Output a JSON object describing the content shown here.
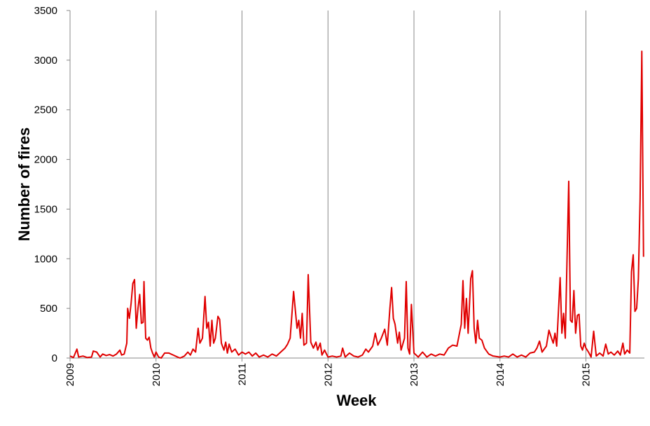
{
  "chart_data": {
    "type": "line",
    "xlabel": "Week",
    "ylabel": "Number of fires",
    "xlim": [
      2009,
      2015.68
    ],
    "xticks": [
      2009,
      2010,
      2011,
      2012,
      2013,
      2014,
      2015
    ],
    "ylim": [
      0,
      3500
    ],
    "yticks": [
      0,
      500,
      1000,
      1500,
      2000,
      2500,
      3000,
      3500
    ],
    "grid": "x",
    "x": [
      2009.0,
      2009.04,
      2009.08,
      2009.1,
      2009.15,
      2009.2,
      2009.25,
      2009.27,
      2009.31,
      2009.35,
      2009.38,
      2009.42,
      2009.46,
      2009.5,
      2009.54,
      2009.58,
      2009.6,
      2009.63,
      2009.66,
      2009.67,
      2009.69,
      2009.71,
      2009.73,
      2009.75,
      2009.77,
      2009.79,
      2009.81,
      2009.83,
      2009.85,
      2009.86,
      2009.88,
      2009.9,
      2009.92,
      2009.94,
      2009.96,
      2009.98,
      2010.0,
      2010.03,
      2010.06,
      2010.1,
      2010.15,
      2010.2,
      2010.25,
      2010.28,
      2010.33,
      2010.37,
      2010.4,
      2010.43,
      2010.46,
      2010.49,
      2010.51,
      2010.54,
      2010.57,
      2010.59,
      2010.61,
      2010.63,
      2010.65,
      2010.67,
      2010.69,
      2010.72,
      2010.74,
      2010.76,
      2010.79,
      2010.81,
      2010.83,
      2010.85,
      2010.88,
      2010.92,
      2010.96,
      2011.0,
      2011.04,
      2011.08,
      2011.12,
      2011.16,
      2011.2,
      2011.25,
      2011.3,
      2011.35,
      2011.4,
      2011.45,
      2011.5,
      2011.53,
      2011.56,
      2011.6,
      2011.64,
      2011.66,
      2011.68,
      2011.7,
      2011.72,
      2011.75,
      2011.77,
      2011.8,
      2011.83,
      2011.86,
      2011.88,
      2011.91,
      2011.93,
      2011.96,
      2012.0,
      2012.05,
      2012.1,
      2012.15,
      2012.17,
      2012.2,
      2012.25,
      2012.3,
      2012.35,
      2012.4,
      2012.44,
      2012.47,
      2012.52,
      2012.55,
      2012.58,
      2012.62,
      2012.66,
      2012.69,
      2012.72,
      2012.74,
      2012.76,
      2012.78,
      2012.81,
      2012.83,
      2012.85,
      2012.89,
      2012.91,
      2012.93,
      2012.95,
      2012.97,
      2013.0,
      2013.05,
      2013.1,
      2013.15,
      2013.2,
      2013.25,
      2013.3,
      2013.35,
      2013.4,
      2013.45,
      2013.5,
      2013.55,
      2013.57,
      2013.59,
      2013.61,
      2013.63,
      2013.66,
      2013.68,
      2013.7,
      2013.72,
      2013.74,
      2013.76,
      2013.79,
      2013.82,
      2013.87,
      2013.92,
      2014.0,
      2014.05,
      2014.1,
      2014.15,
      2014.2,
      2014.25,
      2014.3,
      2014.35,
      2014.4,
      2014.43,
      2014.46,
      2014.49,
      2014.54,
      2014.57,
      2014.6,
      2014.62,
      2014.64,
      2014.66,
      2014.7,
      2014.72,
      2014.74,
      2014.76,
      2014.8,
      2014.82,
      2014.84,
      2014.86,
      2014.88,
      2014.9,
      2014.92,
      2014.94,
      2014.96,
      2014.98,
      2015.0,
      2015.03,
      2015.06,
      2015.09,
      2015.12,
      2015.16,
      2015.2,
      2015.23,
      2015.26,
      2015.29,
      2015.33,
      2015.37,
      2015.4,
      2015.43,
      2015.45,
      2015.48,
      2015.51,
      2015.53,
      2015.55,
      2015.57,
      2015.59,
      2015.61,
      2015.63,
      2015.65,
      2015.67
    ],
    "series": [
      {
        "color": "#e00000",
        "values": [
          20,
          5,
          90,
          10,
          20,
          5,
          10,
          70,
          60,
          10,
          40,
          25,
          35,
          20,
          40,
          80,
          30,
          40,
          150,
          500,
          400,
          550,
          750,
          790,
          300,
          500,
          640,
          350,
          360,
          770,
          200,
          180,
          210,
          100,
          50,
          10,
          60,
          10,
          0,
          50,
          50,
          30,
          10,
          0,
          20,
          60,
          30,
          90,
          60,
          300,
          150,
          200,
          620,
          300,
          360,
          120,
          380,
          150,
          200,
          420,
          390,
          150,
          80,
          160,
          50,
          140,
          60,
          90,
          30,
          60,
          40,
          60,
          20,
          50,
          10,
          30,
          10,
          40,
          20,
          60,
          100,
          140,
          200,
          670,
          300,
          380,
          200,
          450,
          130,
          150,
          840,
          160,
          100,
          160,
          80,
          150,
          30,
          80,
          10,
          20,
          10,
          20,
          100,
          10,
          50,
          20,
          10,
          30,
          90,
          60,
          120,
          250,
          130,
          200,
          290,
          130,
          500,
          710,
          400,
          340,
          150,
          260,
          80,
          200,
          770,
          100,
          40,
          540,
          50,
          10,
          60,
          10,
          40,
          20,
          40,
          30,
          100,
          130,
          120,
          340,
          780,
          300,
          600,
          250,
          800,
          880,
          300,
          150,
          380,
          200,
          180,
          100,
          40,
          20,
          10,
          20,
          10,
          40,
          10,
          30,
          10,
          50,
          60,
          100,
          170,
          60,
          120,
          280,
          200,
          150,
          250,
          120,
          810,
          250,
          450,
          200,
          1780,
          380,
          360,
          680,
          250,
          430,
          440,
          120,
          80,
          150,
          100,
          60,
          10,
          270,
          20,
          50,
          20,
          140,
          40,
          60,
          30,
          70,
          30,
          150,
          40,
          80,
          50,
          870,
          1040,
          470,
          500,
          800,
          1600,
          3090,
          1020
        ]
      }
    ]
  }
}
